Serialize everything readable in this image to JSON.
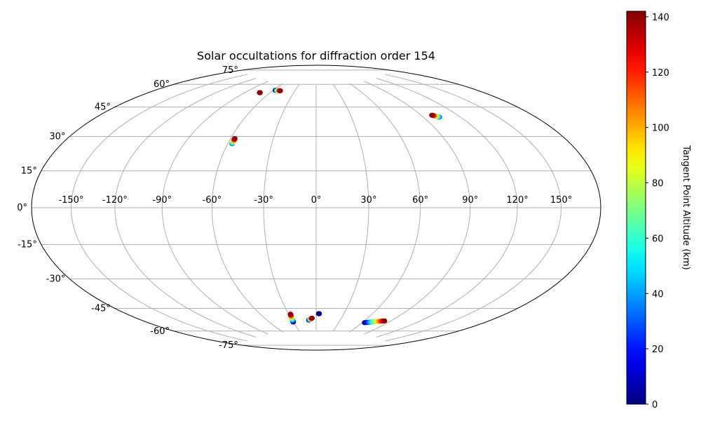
{
  "chart_data": {
    "type": "scatter",
    "projection": "hammer",
    "title": "Solar occultations for diffraction order 154",
    "grid": true,
    "longitude_ticks": [
      {
        "value": -150,
        "label": "-150°"
      },
      {
        "value": -120,
        "label": "-120°"
      },
      {
        "value": -90,
        "label": "-90°"
      },
      {
        "value": -60,
        "label": "-60°"
      },
      {
        "value": -30,
        "label": "-30°"
      },
      {
        "value": 0,
        "label": "0°"
      },
      {
        "value": 30,
        "label": "30°"
      },
      {
        "value": 60,
        "label": "60°"
      },
      {
        "value": 90,
        "label": "90°"
      },
      {
        "value": 120,
        "label": "120°"
      },
      {
        "value": 150,
        "label": "150°"
      }
    ],
    "latitude_ticks": [
      {
        "value": 75,
        "label": "75°"
      },
      {
        "value": 60,
        "label": "60°"
      },
      {
        "value": 45,
        "label": "45°"
      },
      {
        "value": 30,
        "label": "30°"
      },
      {
        "value": 15,
        "label": "15°"
      },
      {
        "value": 0,
        "label": "0°"
      },
      {
        "value": -15,
        "label": "-15°"
      },
      {
        "value": -30,
        "label": "-30°"
      },
      {
        "value": -45,
        "label": "-45°"
      },
      {
        "value": -60,
        "label": "-60°"
      },
      {
        "value": -75,
        "label": "-75°"
      }
    ],
    "colorbar": {
      "label": "Tangent Point Altitude (km)",
      "min": 0,
      "max": 142,
      "colormap": "jet",
      "ticks": [
        {
          "value": 0,
          "label": "0"
        },
        {
          "value": 20,
          "label": "20"
        },
        {
          "value": 40,
          "label": "40"
        },
        {
          "value": 60,
          "label": "60"
        },
        {
          "value": 80,
          "label": "80"
        },
        {
          "value": 100,
          "label": "100"
        },
        {
          "value": 120,
          "label": "120"
        },
        {
          "value": 140,
          "label": "140"
        }
      ]
    },
    "tracks": [
      {
        "lon_start": -72.5,
        "lat_start": 67.5,
        "lon_end": -72.5,
        "lat_end": 67.5,
        "alt_min": 140,
        "alt_max": 140
      },
      {
        "lon_start": -57,
        "lat_start": 70.0,
        "lon_end": -50,
        "lat_end": 70.0,
        "alt_min": 0,
        "alt_max": 140
      },
      {
        "lon_start": -57,
        "lat_start": 36.0,
        "lon_end": -57,
        "lat_end": 39.0,
        "alt_min": 30,
        "alt_max": 140
      },
      {
        "lon_start": 103,
        "lat_start": 49.0,
        "lon_end": 99,
        "lat_end": 50.5,
        "alt_min": 30,
        "alt_max": 140
      },
      {
        "lon_start": -30,
        "lat_start": -68.8,
        "lon_end": -28,
        "lat_end": -63.5,
        "alt_min": 0,
        "alt_max": 140
      },
      {
        "lon_start": -9,
        "lat_start": -67.8,
        "lon_end": -5,
        "lat_end": -66.5,
        "alt_min": 0,
        "alt_max": 140
      },
      {
        "lon_start": 3,
        "lat_start": -63.5,
        "lon_end": 3,
        "lat_end": -63.5,
        "alt_min": 0,
        "alt_max": 0
      },
      {
        "lon_start": 63,
        "lat_start": -68.0,
        "lon_end": 83,
        "lat_end": -65.5,
        "alt_min": 0,
        "alt_max": 140
      }
    ]
  }
}
